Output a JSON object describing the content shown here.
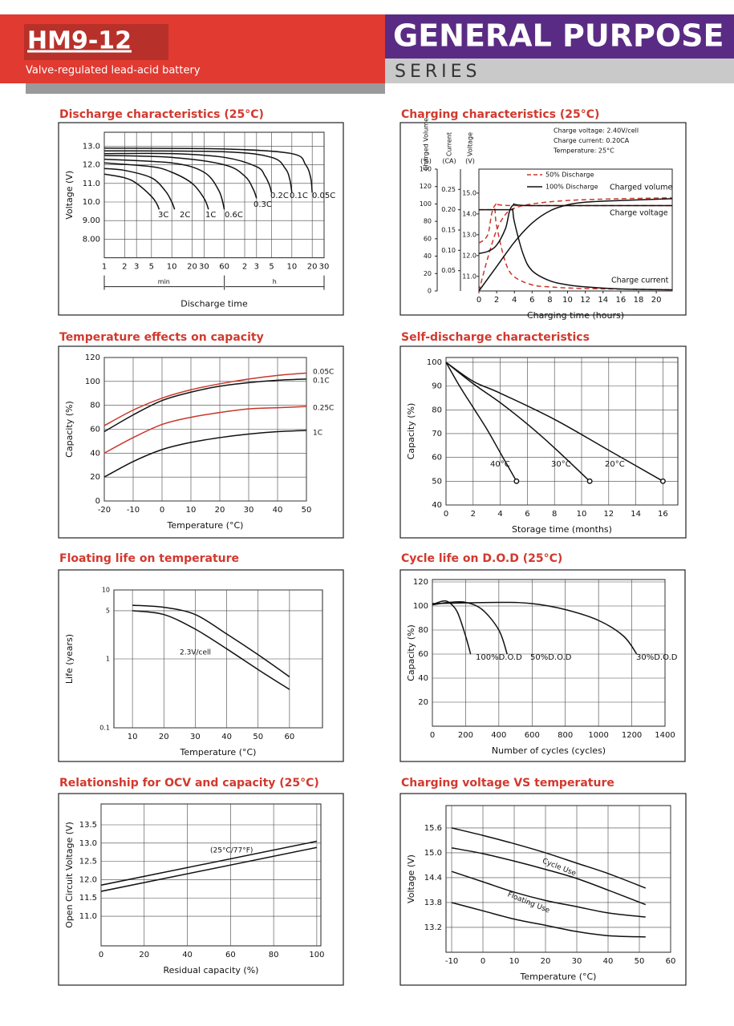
{
  "header": {
    "model": "HM9-12",
    "subtitle": "Valve-regulated lead-acid battery",
    "series_title": "GENERAL PURPOSE",
    "series_label": "SERIES"
  },
  "chart_data": [
    {
      "type": "line",
      "title": "Discharge characteristics (25°C)",
      "xlabel": "Discharge time",
      "ylabel": "Voltage (V)",
      "x_units": [
        "min",
        "h"
      ],
      "xlog": true,
      "xlim": [
        1,
        1800
      ],
      "ylim": [
        7,
        13.75
      ],
      "xticks": [
        1,
        2,
        3,
        5,
        10,
        20,
        30,
        60,
        {
          "value": 120,
          "label": "2"
        },
        {
          "value": 180,
          "label": "3"
        },
        {
          "value": 300,
          "label": "5"
        },
        {
          "value": 600,
          "label": "10"
        },
        {
          "value": 1200,
          "label": "20"
        },
        {
          "value": 1800,
          "label": "30"
        }
      ],
      "yticks": [
        {
          "value": 13,
          "label": "13.0"
        },
        {
          "value": 12,
          "label": "12.0"
        },
        {
          "value": 11,
          "label": "11.0"
        },
        {
          "value": 10,
          "label": "10.0"
        },
        {
          "value": 9,
          "label": "9.00"
        },
        {
          "value": 8,
          "label": "8.00"
        }
      ],
      "grid": true,
      "series": [
        {
          "name": "3C",
          "color": "#111",
          "x": [
            1,
            2,
            3,
            5,
            6,
            6.5
          ],
          "values": [
            11.5,
            11.3,
            11.0,
            10.3,
            9.9,
            9.6
          ]
        },
        {
          "name": "2C",
          "color": "#111",
          "x": [
            1,
            2,
            5,
            8,
            10,
            11
          ],
          "values": [
            11.8,
            11.7,
            11.3,
            10.6,
            10.0,
            9.6
          ]
        },
        {
          "name": "1C",
          "color": "#111",
          "x": [
            1,
            5,
            10,
            20,
            30,
            35
          ],
          "values": [
            12.1,
            11.9,
            11.6,
            11.0,
            10.2,
            9.6
          ]
        },
        {
          "name": "0.6C",
          "color": "#111",
          "x": [
            1,
            10,
            30,
            50,
            60
          ],
          "values": [
            12.3,
            12.1,
            11.6,
            10.6,
            9.6
          ]
        },
        {
          "name": "0.3C",
          "color": "#111",
          "x": [
            1,
            10,
            60,
            120,
            160,
            180
          ],
          "values": [
            12.5,
            12.4,
            12.0,
            11.4,
            10.7,
            10.2
          ]
        },
        {
          "name": "0.2C",
          "color": "#111",
          "x": [
            1,
            10,
            60,
            180,
            240,
            280,
            300
          ],
          "values": [
            12.6,
            12.6,
            12.4,
            11.9,
            11.4,
            10.9,
            10.5
          ]
        },
        {
          "name": "0.1C",
          "color": "#111",
          "x": [
            1,
            60,
            300,
            480,
            560,
            600
          ],
          "values": [
            12.75,
            12.7,
            12.4,
            11.8,
            11.2,
            10.5
          ]
        },
        {
          "name": "0.05C",
          "color": "#111",
          "x": [
            1,
            60,
            600,
            960,
            1140,
            1200
          ],
          "values": [
            12.9,
            12.85,
            12.6,
            12.0,
            11.3,
            10.5
          ]
        }
      ]
    },
    {
      "type": "line",
      "title": "Charging characteristics (25°C)",
      "notes": [
        "Charge voltage: 2.40V/cell",
        "Charge current: 0.20CA",
        "Temperature: 25°C"
      ],
      "xlabel": "Charging time (hours)",
      "ylabel": "Charged Volume",
      "yunit": "(%)",
      "y2label": "Current",
      "y2unit": "(CA)",
      "y3label": "Voltage",
      "y3unit": "(V)",
      "xlim": [
        0,
        21.8
      ],
      "xticks": [
        0,
        2,
        4,
        6,
        8,
        10,
        12,
        14,
        16,
        18,
        20
      ],
      "ylim": [
        0,
        140
      ],
      "yticks": [
        0,
        20,
        40,
        60,
        80,
        100,
        120,
        140
      ],
      "y2lim": [
        0,
        0.3
      ],
      "y2ticks": [
        0.05,
        {
          "value": 0.1,
          "label": "0.10"
        },
        0.15,
        {
          "value": 0.2,
          "label": "0.20"
        },
        0.25
      ],
      "y3lim": [
        10.3,
        16.15
      ],
      "y3ticks": [
        {
          "value": 11,
          "label": "11.0"
        },
        {
          "value": 12,
          "label": "12.0"
        },
        {
          "value": 13,
          "label": "13.0"
        },
        {
          "value": 14,
          "label": "14.0"
        },
        {
          "value": 15,
          "label": "15.0"
        }
      ],
      "grid": false,
      "curve_labels": [
        "Charged volume",
        "Charge voltage",
        "Charge current"
      ],
      "series": [
        {
          "name": "50% Discharge",
          "color": "#c8372d",
          "dash": true,
          "curves": [
            {
              "axis": "y",
              "x": [
                0,
                1,
                2,
                3,
                4,
                6,
                10,
                16,
                21.8
              ],
              "values": [
                0,
                38,
                70,
                88,
                95,
                100,
                104,
                106,
                107
              ]
            },
            {
              "axis": "y2",
              "x": [
                0,
                1.5,
                1.8,
                2,
                3,
                4,
                6,
                8,
                12,
                21.8
              ],
              "values": [
                0.2,
                0.2,
                0.2,
                0.16,
                0.07,
                0.035,
                0.015,
                0.01,
                0.006,
                0.003
              ]
            },
            {
              "axis": "y3",
              "x": [
                0,
                1,
                1.8,
                4,
                21.8
              ],
              "values": [
                12.6,
                13.0,
                14.4,
                14.4,
                14.4
              ]
            }
          ]
        },
        {
          "name": "100% Discharge",
          "color": "#111",
          "dash": false,
          "curves": [
            {
              "axis": "y",
              "x": [
                0,
                2,
                4,
                6,
                8,
                10,
                12,
                16,
                21.8
              ],
              "values": [
                0,
                28,
                56,
                78,
                92,
                99,
                102,
                104,
                106
              ]
            },
            {
              "axis": "y2",
              "x": [
                0,
                3.5,
                3.8,
                4,
                5,
                6,
                8,
                10,
                12,
                16,
                21.8
              ],
              "values": [
                0.2,
                0.2,
                0.2,
                0.17,
                0.09,
                0.05,
                0.025,
                0.015,
                0.01,
                0.005,
                0.003
              ]
            },
            {
              "axis": "y3",
              "x": [
                0,
                1,
                2,
                3,
                3.8,
                6,
                21.8
              ],
              "values": [
                12.1,
                12.2,
                12.5,
                13.3,
                14.4,
                14.4,
                14.4
              ]
            }
          ]
        }
      ]
    },
    {
      "type": "line",
      "title": "Temperature effects on capacity",
      "xlabel": "Temperature (°C)",
      "ylabel": "Capacity (%)",
      "xlim": [
        -20,
        50
      ],
      "ylim": [
        0,
        120
      ],
      "xticks": [
        -20,
        -10,
        0,
        10,
        20,
        30,
        40,
        50
      ],
      "yticks": [
        0,
        20,
        40,
        60,
        80,
        100,
        120
      ],
      "grid": true,
      "x": [
        -20,
        -10,
        0,
        10,
        20,
        30,
        40,
        50
      ],
      "series": [
        {
          "name": "0.05C",
          "color": "#c8372d",
          "values": [
            63,
            76,
            86,
            93,
            98,
            102,
            105,
            107
          ]
        },
        {
          "name": "0.1C",
          "color": "#111",
          "values": [
            58,
            72,
            84,
            91,
            96,
            99,
            101,
            102
          ]
        },
        {
          "name": "0.25C",
          "color": "#c8372d",
          "values": [
            40,
            53,
            64,
            70,
            74,
            77,
            78,
            79
          ]
        },
        {
          "name": "1C",
          "color": "#111",
          "values": [
            20,
            33,
            43,
            49,
            53,
            56,
            58,
            59
          ]
        }
      ]
    },
    {
      "type": "line",
      "title": "Self-discharge characteristics",
      "xlabel": "Storage time (months)",
      "ylabel": "Capacity (%)",
      "xlim": [
        0,
        17.1
      ],
      "ylim": [
        40,
        102
      ],
      "xticks": [
        0,
        2,
        4,
        6,
        8,
        10,
        12,
        14,
        16
      ],
      "yticks": [
        40,
        50,
        60,
        70,
        80,
        90,
        100
      ],
      "grid": true,
      "end_markers": true,
      "series": [
        {
          "name": "40°C",
          "color": "#111",
          "x": [
            0,
            1,
            2,
            3,
            4,
            5.2
          ],
          "values": [
            100,
            90,
            81,
            72,
            62,
            50
          ]
        },
        {
          "name": "30°C",
          "color": "#111",
          "x": [
            0,
            2,
            4,
            6,
            8,
            10.6
          ],
          "values": [
            100,
            91,
            83,
            74,
            64,
            50
          ]
        },
        {
          "name": "20°C",
          "color": "#111",
          "x": [
            0,
            2,
            4,
            8,
            12,
            16
          ],
          "values": [
            100,
            92,
            87,
            76,
            63,
            50
          ]
        }
      ]
    },
    {
      "type": "line",
      "title": "Floating life on temperature",
      "xlabel": "Temperature (°C)",
      "ylabel": "Life (years)",
      "ylog": true,
      "xlim": [
        4.1,
        70.5
      ],
      "ylim": [
        0.1,
        10
      ],
      "xticks": [
        10,
        20,
        30,
        40,
        50,
        60
      ],
      "yticks": [
        10,
        5,
        1,
        0.1
      ],
      "grid": true,
      "x": [
        10,
        20,
        30,
        40,
        50,
        60
      ],
      "series": [
        {
          "name": "2.3V/cell",
          "color": "#111",
          "values": [
            6,
            5.6,
            4.4,
            2.3,
            1.15,
            0.55
          ],
          "values_low": [
            5,
            4.4,
            2.7,
            1.4,
            0.7,
            0.36
          ]
        }
      ]
    },
    {
      "type": "line",
      "title": "Cycle life on D.O.D (25°C)",
      "xlabel": "Number of cycles (cycles)",
      "ylabel": "Capacity (%)",
      "xlim": [
        0,
        1400
      ],
      "ylim": [
        0,
        122
      ],
      "xticks": [
        0,
        200,
        400,
        600,
        800,
        1000,
        1200,
        1400
      ],
      "yticks": [
        20,
        40,
        60,
        80,
        100,
        120
      ],
      "grid": true,
      "series": [
        {
          "name": "100%D.O.D",
          "color": "#111",
          "x": [
            0,
            60,
            100,
            150,
            200,
            230
          ],
          "values": [
            101,
            104,
            103,
            95,
            75,
            60
          ]
        },
        {
          "name": "50%D.O.D",
          "color": "#111",
          "x": [
            0,
            100,
            200,
            300,
            400,
            450
          ],
          "values": [
            101,
            103,
            103,
            97,
            80,
            60
          ]
        },
        {
          "name": "30%D.O.D",
          "color": "#111",
          "x": [
            0,
            400,
            600,
            800,
            1000,
            1150,
            1230
          ],
          "values": [
            102,
            103,
            102,
            97,
            88,
            75,
            60
          ]
        }
      ]
    },
    {
      "type": "line",
      "title": "Relationship for OCV and capacity (25°C)",
      "xlabel": "Residual capacity (%)",
      "ylabel": "Open Circuit Voltage (V)",
      "xlim": [
        0,
        101.9
      ],
      "ylim": [
        10.19,
        14.07
      ],
      "xticks": [
        0,
        20,
        40,
        60,
        80,
        100
      ],
      "yticks": [
        13.5,
        {
          "value": 13,
          "label": "13.0"
        },
        12.5,
        {
          "value": 12,
          "label": "12.0"
        },
        11.5,
        {
          "value": 11,
          "label": "11.0"
        }
      ],
      "grid": true,
      "x": [
        0,
        100
      ],
      "series": [
        {
          "name": "(25°C/77°F)",
          "color": "#111",
          "values": [
            11.85,
            13.05
          ],
          "values_low": [
            11.68,
            12.88
          ]
        }
      ]
    },
    {
      "type": "line",
      "title": "Charging voltage VS temperature",
      "xlabel": "Temperature (°C)",
      "ylabel": "Voltage (V)",
      "xlim": [
        -11.8,
        60
      ],
      "ylim": [
        12.6,
        16.14
      ],
      "xticks": [
        -10,
        0,
        10,
        20,
        30,
        40,
        50,
        60
      ],
      "yticks": [
        15.6,
        {
          "value": 15,
          "label": "15.0"
        },
        14.4,
        13.8,
        13.2
      ],
      "grid": true,
      "x": [
        -10,
        0,
        10,
        20,
        30,
        40,
        52
      ],
      "series": [
        {
          "name": "Cycle Use",
          "color": "#111",
          "values": [
            15.6,
            15.42,
            15.22,
            15.0,
            14.75,
            14.5,
            14.15
          ],
          "values_low": [
            15.12,
            14.98,
            14.8,
            14.6,
            14.38,
            14.1,
            13.75
          ]
        },
        {
          "name": "Floating Use",
          "color": "#111",
          "values": [
            14.55,
            14.3,
            14.05,
            13.85,
            13.7,
            13.55,
            13.45
          ],
          "values_low": [
            13.8,
            13.6,
            13.4,
            13.25,
            13.1,
            13.0,
            12.97
          ]
        }
      ]
    }
  ]
}
